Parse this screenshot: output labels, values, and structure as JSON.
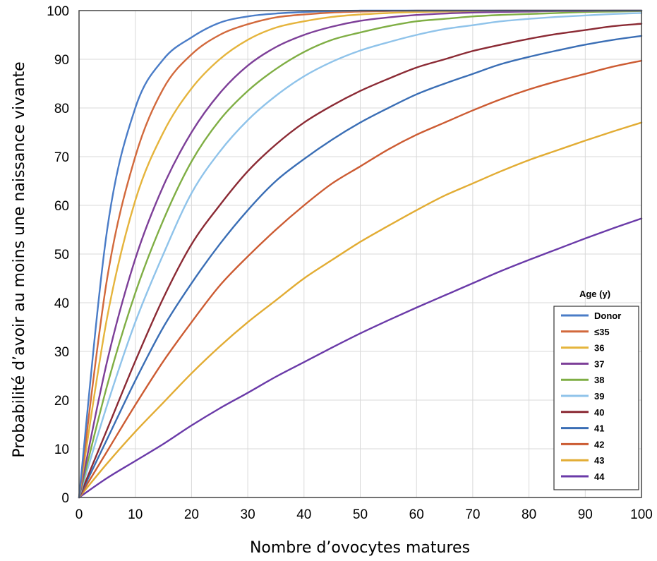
{
  "chart_data": {
    "type": "line",
    "title": "",
    "xlabel": "Nombre d’ovocytes matures",
    "ylabel": "Probabilité d’avoir au moins une naissance vivante",
    "xlim": [
      0,
      100
    ],
    "ylim": [
      0,
      100
    ],
    "x_ticks": [
      0,
      10,
      20,
      30,
      40,
      50,
      60,
      70,
      80,
      90,
      100
    ],
    "y_ticks": [
      0,
      10,
      20,
      30,
      40,
      50,
      60,
      70,
      80,
      90,
      100
    ],
    "grid": true,
    "legend": {
      "title": "Age (y)",
      "placement": "bottom-right"
    },
    "x": [
      0,
      5,
      10,
      15,
      20,
      25,
      30,
      35,
      40,
      45,
      50,
      55,
      60,
      65,
      70,
      75,
      80,
      85,
      90,
      95,
      100
    ],
    "series": [
      {
        "name": "Donor",
        "color": "#4a7cc7",
        "values": [
          0,
          55,
          80,
          90,
          94.5,
          97.5,
          98.8,
          99.4,
          99.7,
          99.9,
          100,
          100,
          100,
          100,
          100,
          100,
          100,
          100,
          100,
          100,
          100
        ]
      },
      {
        "name": "≤35",
        "color": "#d2693c",
        "values": [
          0,
          45,
          70,
          84,
          91,
          95,
          97.2,
          98.6,
          99.2,
          99.6,
          99.8,
          99.9,
          100,
          100,
          100,
          100,
          100,
          100,
          100,
          100,
          100
        ]
      },
      {
        "name": "36",
        "color": "#e5b43c",
        "values": [
          0,
          37,
          61,
          75,
          84,
          90,
          94,
          96.5,
          97.8,
          98.7,
          99.2,
          99.5,
          99.7,
          99.8,
          99.9,
          100,
          100,
          100,
          100,
          100,
          100
        ]
      },
      {
        "name": "37",
        "color": "#7d3f98",
        "values": [
          0,
          28,
          49,
          64,
          75,
          83,
          88.7,
          92.5,
          95,
          96.7,
          97.9,
          98.6,
          99.1,
          99.4,
          99.6,
          99.7,
          99.8,
          99.9,
          99.9,
          100,
          100
        ]
      },
      {
        "name": "38",
        "color": "#7fae44",
        "values": [
          0,
          23,
          42,
          57,
          69,
          77.5,
          83.5,
          88,
          91.5,
          94,
          95.5,
          96.8,
          97.8,
          98.3,
          98.8,
          99.1,
          99.3,
          99.5,
          99.7,
          99.8,
          99.9
        ]
      },
      {
        "name": "39",
        "color": "#8fc3ea",
        "values": [
          0,
          19,
          36,
          50,
          62.5,
          71,
          77.5,
          82.5,
          86.5,
          89.5,
          91.8,
          93.5,
          95,
          96.2,
          97,
          97.8,
          98.3,
          98.7,
          99,
          99.3,
          99.5
        ]
      },
      {
        "name": "40",
        "color": "#8b2a34",
        "values": [
          0,
          14,
          28,
          41,
          52,
          60,
          67,
          72.5,
          77,
          80.5,
          83.5,
          86,
          88.3,
          90,
          91.7,
          93,
          94.2,
          95.2,
          96,
          96.8,
          97.3
        ]
      },
      {
        "name": "41",
        "color": "#3a6eb5",
        "values": [
          0,
          12,
          24,
          35,
          44,
          52,
          59,
          65,
          69.5,
          73.5,
          77,
          80,
          82.8,
          85,
          87,
          89,
          90.5,
          91.8,
          93,
          94,
          94.8
        ]
      },
      {
        "name": "42",
        "color": "#cc5b32",
        "values": [
          0,
          9.5,
          19,
          28,
          36,
          43.5,
          49.5,
          55,
          60,
          64.5,
          68,
          71.5,
          74.5,
          77,
          79.5,
          81.8,
          83.8,
          85.5,
          87,
          88.5,
          89.7
        ]
      },
      {
        "name": "43",
        "color": "#e2ac33",
        "values": [
          0,
          7,
          13.5,
          19.5,
          25.5,
          31,
          36,
          40.5,
          45,
          48.8,
          52.5,
          55.8,
          59,
          62,
          64.5,
          67,
          69.3,
          71.3,
          73.3,
          75.2,
          77
        ]
      },
      {
        "name": "44",
        "color": "#6a3aa8",
        "values": [
          0,
          4,
          7.5,
          11,
          14.8,
          18.3,
          21.5,
          24.8,
          27.8,
          30.8,
          33.7,
          36.4,
          39,
          41.5,
          44,
          46.5,
          48.8,
          51,
          53.2,
          55.3,
          57.3
        ]
      }
    ]
  }
}
